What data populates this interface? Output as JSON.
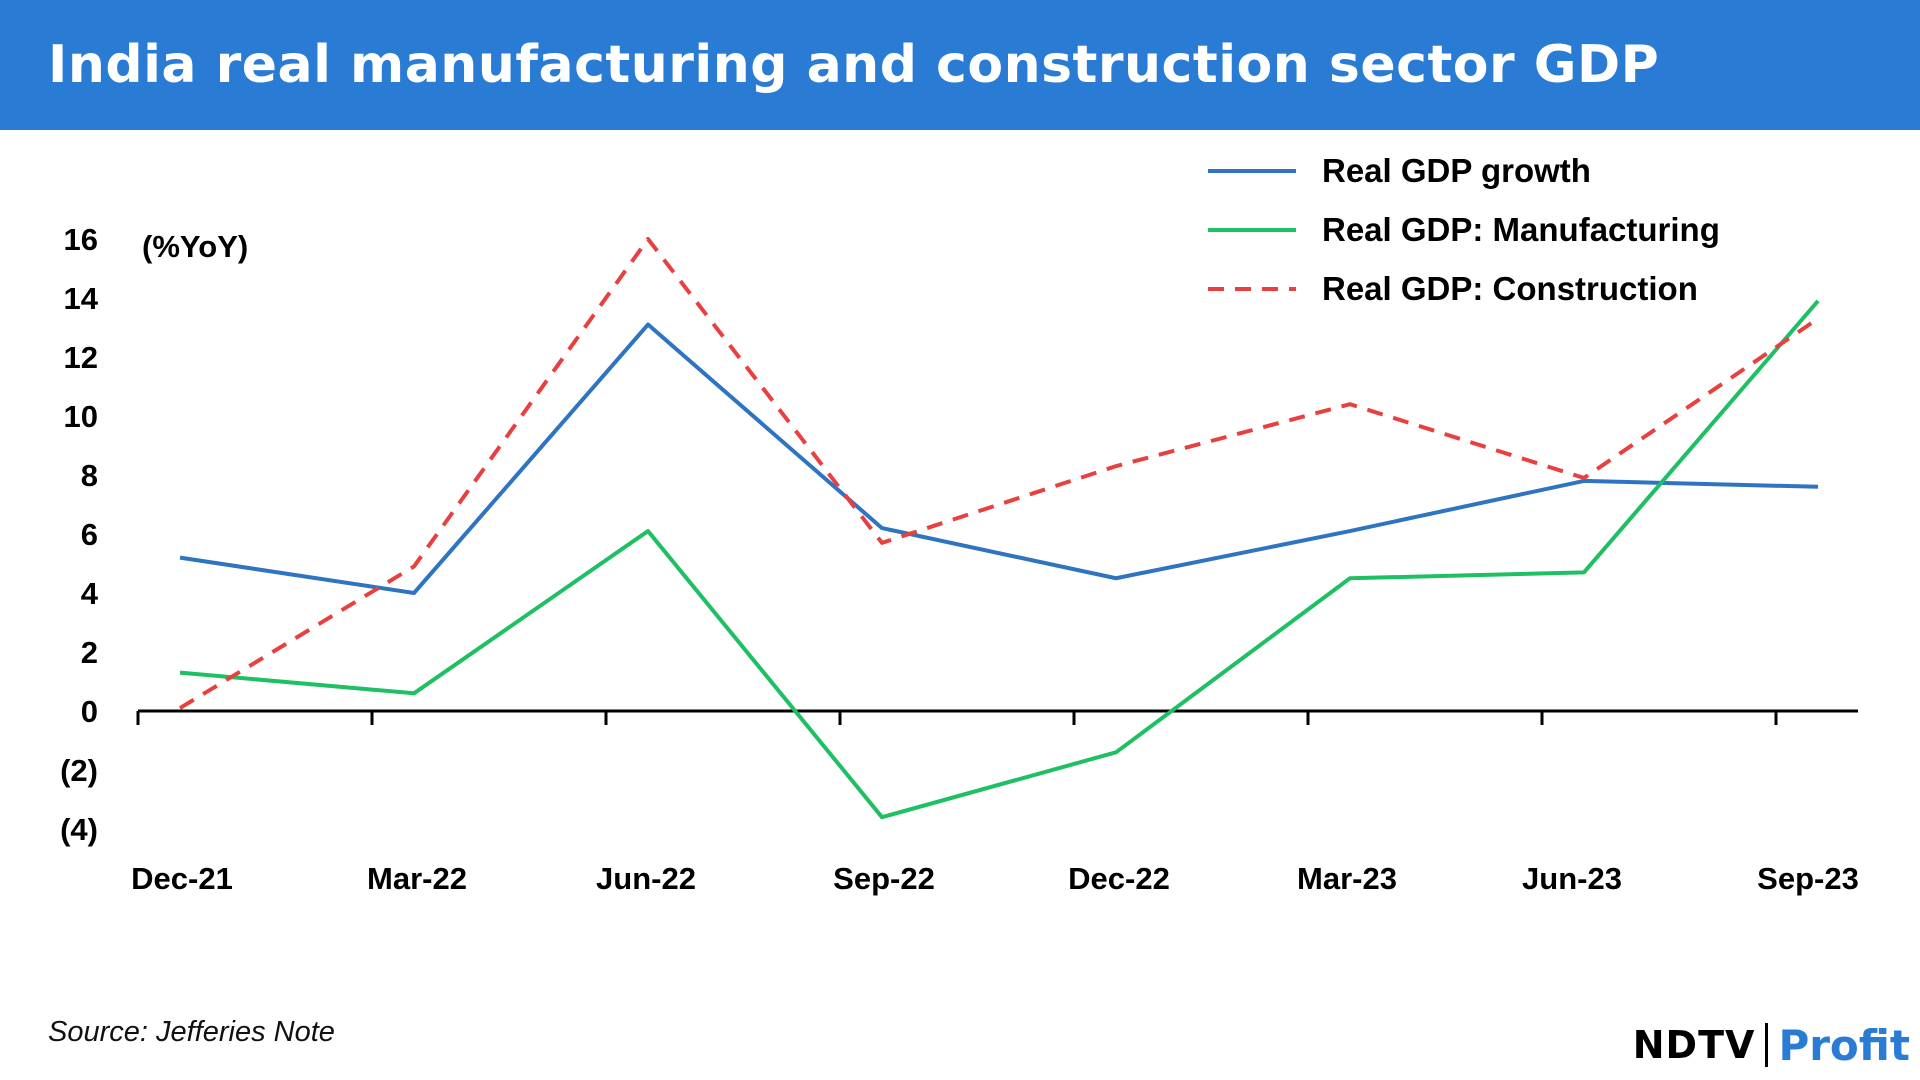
{
  "header": {
    "title": "India real manufacturing and construction sector GDP"
  },
  "footer": {
    "source": "Source: Jefferies Note"
  },
  "brand": {
    "left": "NDTV",
    "right": "Profit"
  },
  "colors": {
    "banner": "#2a7bd4",
    "growth": "#2f74c0",
    "manufacturing": "#1fbf63",
    "construction": "#e8403f"
  },
  "chart_data": {
    "type": "line",
    "title": "India real manufacturing and construction sector GDP",
    "ylabel": "(%YoY)",
    "xlabel": "",
    "categories": [
      "Dec-21",
      "Mar-22",
      "Jun-22",
      "Sep-22",
      "Dec-22",
      "Mar-23",
      "Jun-23",
      "Sep-23"
    ],
    "yticks": [
      -4,
      -2,
      0,
      2,
      4,
      6,
      8,
      10,
      12,
      14,
      16
    ],
    "ytick_labels": [
      "(4)",
      "(2)",
      "0",
      "2",
      "4",
      "6",
      "8",
      "10",
      "12",
      "14",
      "16"
    ],
    "ylim": [
      -4,
      16
    ],
    "grid": false,
    "legend_position": "top-right",
    "series": [
      {
        "name": "Real GDP growth",
        "style": "solid",
        "color": "#2f74c0",
        "values": [
          5.2,
          4.0,
          13.1,
          6.2,
          4.5,
          6.1,
          7.8,
          7.6
        ]
      },
      {
        "name": "Real GDP: Manufacturing",
        "style": "solid",
        "color": "#1fbf63",
        "values": [
          1.3,
          0.6,
          6.1,
          -3.6,
          -1.4,
          4.5,
          4.7,
          13.9
        ]
      },
      {
        "name": "Real GDP: Construction",
        "style": "dashed",
        "color": "#e8403f",
        "values": [
          0.1,
          4.9,
          16.0,
          5.7,
          8.3,
          10.4,
          7.9,
          13.3
        ]
      }
    ]
  }
}
